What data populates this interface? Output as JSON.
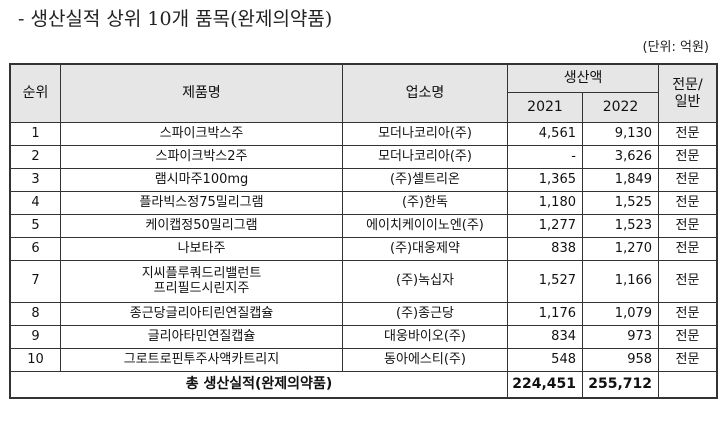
{
  "title": "- 생산실적 상위 10개 품목(완제의약품)",
  "unit": "(단위: 억원)",
  "headers": {
    "rank": "순위",
    "product": "제품명",
    "company": "업소명",
    "production": "생산액",
    "year1": "2021",
    "year2": "2022",
    "type": "전문/\n일반"
  },
  "rows": [
    {
      "rank": "1",
      "product": "스파이크박스주",
      "company": "모더나코리아(주)",
      "y2021": "4,561",
      "y2022": "9,130",
      "type": "전문"
    },
    {
      "rank": "2",
      "product": "스파이크박스2주",
      "company": "모더나코리아(주)",
      "y2021": "-",
      "y2022": "3,626",
      "type": "전문"
    },
    {
      "rank": "3",
      "product": "램시마주100mg",
      "company": "(주)셀트리온",
      "y2021": "1,365",
      "y2022": "1,849",
      "type": "전문"
    },
    {
      "rank": "4",
      "product": "플라빅스정75밀리그램",
      "company": "(주)한독",
      "y2021": "1,180",
      "y2022": "1,525",
      "type": "전문"
    },
    {
      "rank": "5",
      "product": "케이캡정50밀리그램",
      "company": "에이치케이이노엔(주)",
      "y2021": "1,277",
      "y2022": "1,523",
      "type": "전문"
    },
    {
      "rank": "6",
      "product": "나보타주",
      "company": "(주)대웅제약",
      "y2021": "838",
      "y2022": "1,270",
      "type": "전문"
    },
    {
      "rank": "7",
      "product": "지씨플루쿼드리밸런트 프리필드시린지주",
      "company": "(주)녹십자",
      "y2021": "1,527",
      "y2022": "1,166",
      "type": "전문"
    },
    {
      "rank": "8",
      "product": "종근당글리아티린연질캡슐",
      "company": "(주)종근당",
      "y2021": "1,176",
      "y2022": "1,079",
      "type": "전문"
    },
    {
      "rank": "9",
      "product": "글리아타민연질캡슐",
      "company": "대웅바이오(주)",
      "y2021": "834",
      "y2022": "973",
      "type": "전문"
    },
    {
      "rank": "10",
      "product": "그로트로핀투주사액카트리지",
      "company": "동아에스티(주)",
      "y2021": "548",
      "y2022": "958",
      "type": "전문"
    }
  ],
  "total": {
    "label": "총 생산실적(완제의약품)",
    "y2021": "224,451",
    "y2022": "255,712"
  }
}
